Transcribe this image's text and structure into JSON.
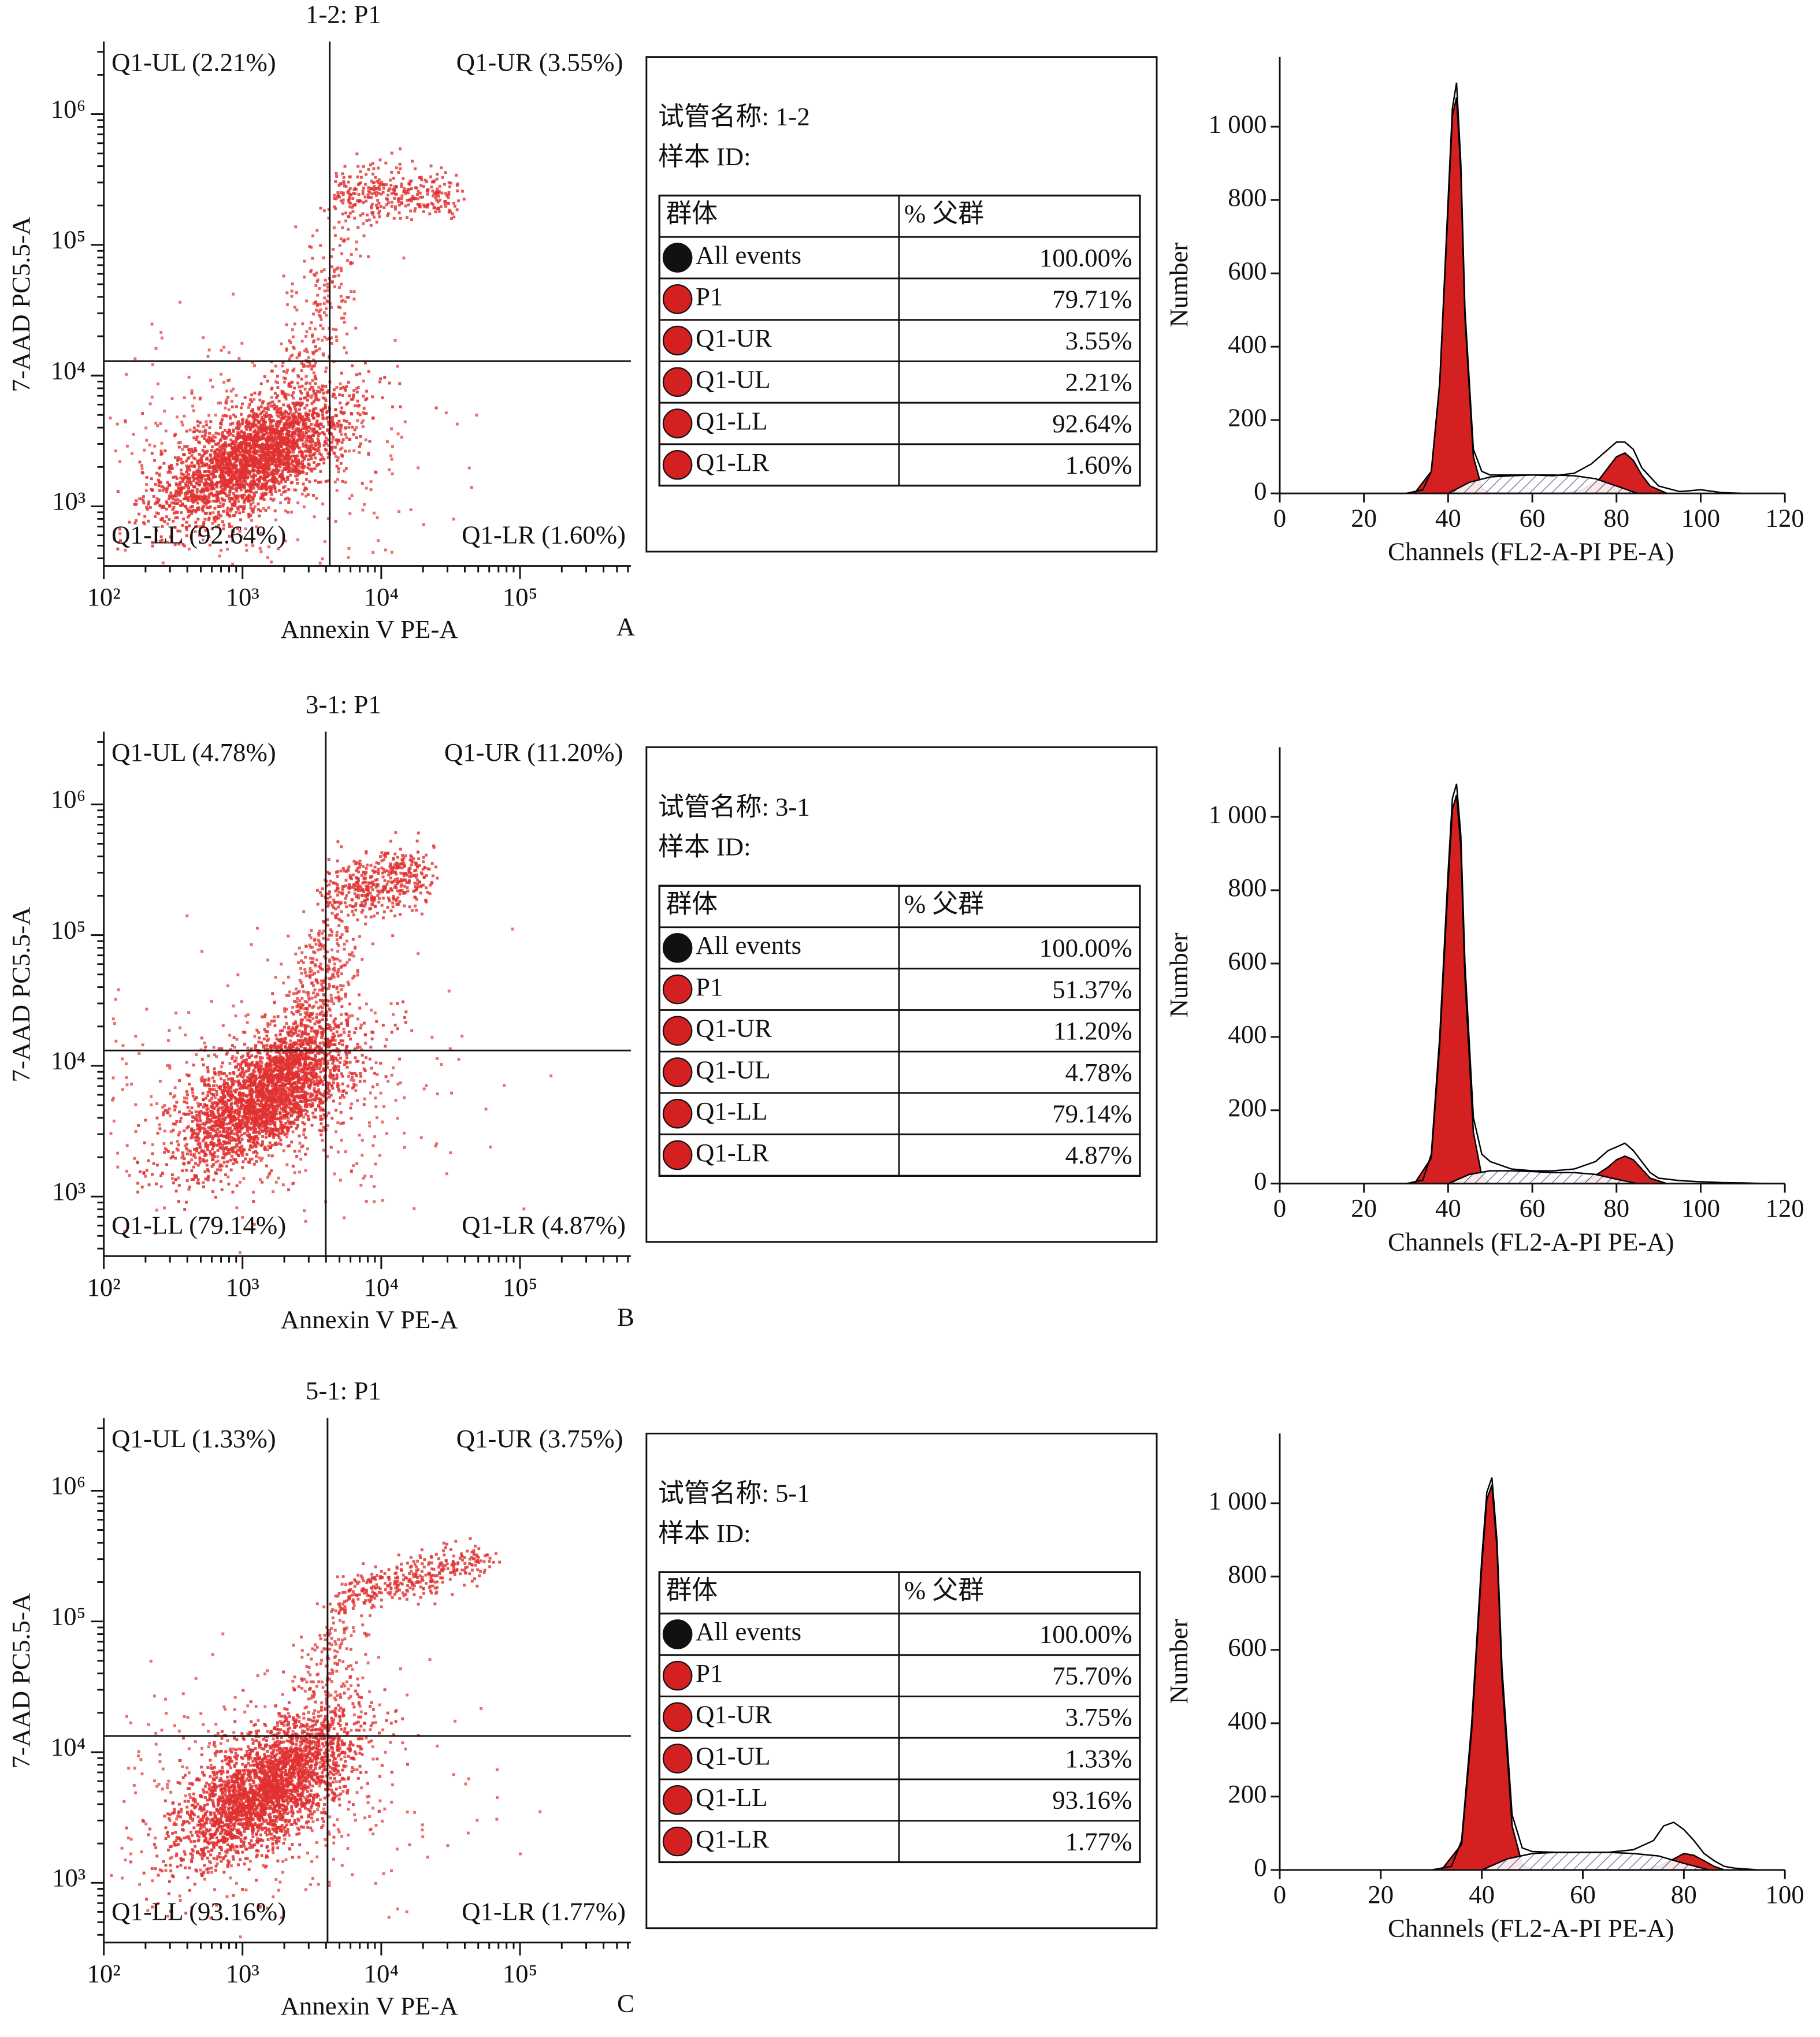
{
  "chart_data": [
    {
      "type": "scatter",
      "title": "1-2: P1",
      "x_label": "Annexin V PE-A",
      "y_label": "7-AAD PC5.5-A",
      "panel_label": "A",
      "xscale": "log",
      "yscale": "log",
      "xlim": [
        100,
        630000
      ],
      "ylim": [
        350,
        3600000
      ],
      "xticks": [
        {
          "value": 100,
          "label": "10²"
        },
        {
          "value": 1000,
          "label": "10³"
        },
        {
          "value": 10000,
          "label": "10⁴"
        },
        {
          "value": 100000,
          "label": "10⁵"
        }
      ],
      "yticks": [
        {
          "value": 1000,
          "label": "10³"
        },
        {
          "value": 10000,
          "label": "10⁴"
        },
        {
          "value": 100000,
          "label": "10⁵"
        },
        {
          "value": 1000000,
          "label": "10⁶"
        }
      ],
      "x_gate": 4250,
      "y_gate": 12900,
      "color": "#e03030",
      "quadrant_labels": {
        "UL": "Q1-UL (2.21%)",
        "UR": "Q1-UR (3.55%)",
        "LL": "Q1-LL (92.64%)",
        "LR": "Q1-LR (1.60%)"
      }
    },
    {
      "type": "table",
      "tube": "试管名称: 1-2",
      "sample": "样本 ID:",
      "columns": [
        "群体",
        "% 父群"
      ],
      "rows": [
        [
          "All events",
          "100.00%"
        ],
        [
          "P1",
          "79.71%"
        ],
        [
          "Q1-UR",
          "3.55%"
        ],
        [
          "Q1-UL",
          "2.21%"
        ],
        [
          "Q1-LL",
          "92.64%"
        ],
        [
          "Q1-LR",
          "1.60%"
        ]
      ],
      "dot_colors": [
        "#111111",
        "#d42020",
        "#d42020",
        "#d42020",
        "#d42020",
        "#d42020"
      ]
    },
    {
      "type": "area",
      "x_label": "Channels (FL2-A-PI PE-A)",
      "y_label": "Number",
      "xlim": [
        0,
        120
      ],
      "ylim": [
        0,
        1190
      ],
      "xticks": [
        0,
        20,
        40,
        60,
        80,
        100,
        120
      ],
      "yticks": [
        0,
        200,
        400,
        600,
        800,
        {
          "value": 1000,
          "label": "1 000"
        }
      ],
      "series": [
        {
          "color": "#000000",
          "fill": "#d42020",
          "x": [
            32,
            36,
            38,
            40,
            41,
            42,
            43,
            44,
            46,
            48,
            50
          ],
          "values": [
            0,
            60,
            300,
            780,
            1030,
            1080,
            880,
            480,
            100,
            15,
            0
          ]
        },
        {
          "color": "#000000",
          "fill": "#d42020",
          "x": [
            68,
            72,
            76,
            78,
            80,
            82,
            84,
            86,
            88,
            92
          ],
          "values": [
            0,
            10,
            40,
            70,
            100,
            110,
            90,
            50,
            20,
            0
          ]
        },
        {
          "color": "#000000",
          "fill": "hatch",
          "x": [
            40,
            45,
            50,
            55,
            60,
            65,
            70,
            75,
            80,
            85
          ],
          "values": [
            0,
            30,
            45,
            48,
            50,
            50,
            48,
            40,
            20,
            0
          ]
        },
        {
          "color": "#000000",
          "fill": "none",
          "x": [
            30,
            34,
            36,
            38,
            40,
            41,
            42,
            43,
            44,
            46,
            48,
            50,
            55,
            60,
            65,
            70,
            74,
            78,
            80,
            82,
            84,
            86,
            90,
            95,
            100,
            105,
            110
          ],
          "values": [
            0,
            10,
            60,
            300,
            800,
            1050,
            1120,
            900,
            500,
            120,
            60,
            50,
            50,
            50,
            48,
            55,
            80,
            120,
            140,
            140,
            120,
            70,
            20,
            5,
            10,
            2,
            0
          ]
        }
      ]
    },
    {
      "type": "scatter",
      "title": "3-1: P1",
      "x_label": "Annexin V PE-A",
      "y_label": "7-AAD PC5.5-A",
      "panel_label": "B",
      "xscale": "log",
      "yscale": "log",
      "xlim": [
        100,
        630000
      ],
      "ylim": [
        350,
        3600000
      ],
      "xticks": [
        {
          "value": 100,
          "label": "10²"
        },
        {
          "value": 1000,
          "label": "10³"
        },
        {
          "value": 10000,
          "label": "10⁴"
        },
        {
          "value": 100000,
          "label": "10⁵"
        }
      ],
      "yticks": [
        {
          "value": 1000,
          "label": "10³"
        },
        {
          "value": 10000,
          "label": "10⁴"
        },
        {
          "value": 100000,
          "label": "10⁵"
        },
        {
          "value": 1000000,
          "label": "10⁶"
        }
      ],
      "x_gate": 3980,
      "y_gate": 13100,
      "color": "#e03030",
      "quadrant_labels": {
        "UL": "Q1-UL (4.78%)",
        "UR": "Q1-UR (11.20%)",
        "LL": "Q1-LL (79.14%)",
        "LR": "Q1-LR (4.87%)"
      }
    },
    {
      "type": "table",
      "tube": "试管名称: 3-1",
      "sample": "样本 ID:",
      "columns": [
        "群体",
        "% 父群"
      ],
      "rows": [
        [
          "All events",
          "100.00%"
        ],
        [
          "P1",
          "51.37%"
        ],
        [
          "Q1-UR",
          "11.20%"
        ],
        [
          "Q1-UL",
          "4.78%"
        ],
        [
          "Q1-LL",
          "79.14%"
        ],
        [
          "Q1-LR",
          "4.87%"
        ]
      ],
      "dot_colors": [
        "#111111",
        "#d42020",
        "#d42020",
        "#d42020",
        "#d42020",
        "#d42020"
      ]
    },
    {
      "type": "area",
      "x_label": "Channels (FL2-A-PI PE-A)",
      "y_label": "Number",
      "xlim": [
        0,
        120
      ],
      "ylim": [
        0,
        1190
      ],
      "xticks": [
        0,
        20,
        40,
        60,
        80,
        100,
        120
      ],
      "yticks": [
        0,
        200,
        400,
        600,
        800,
        {
          "value": 1000,
          "label": "1 000"
        }
      ],
      "series": [
        {
          "color": "#000000",
          "fill": "#d42020",
          "x": [
            32,
            36,
            38,
            40,
            41,
            42,
            43,
            44,
            46,
            48,
            50
          ],
          "values": [
            0,
            70,
            380,
            820,
            1020,
            1060,
            920,
            560,
            140,
            20,
            0
          ]
        },
        {
          "color": "#000000",
          "fill": "#d42020",
          "x": [
            70,
            74,
            78,
            80,
            82,
            84,
            86,
            88,
            92
          ],
          "values": [
            0,
            15,
            45,
            65,
            75,
            65,
            40,
            15,
            0
          ]
        },
        {
          "color": "#000000",
          "fill": "hatch",
          "x": [
            40,
            45,
            50,
            55,
            60,
            65,
            70,
            75,
            80,
            85
          ],
          "values": [
            0,
            25,
            35,
            35,
            33,
            30,
            30,
            25,
            12,
            0
          ]
        },
        {
          "color": "#000000",
          "fill": "none",
          "x": [
            30,
            34,
            36,
            38,
            40,
            41,
            42,
            43,
            44,
            46,
            48,
            50,
            55,
            60,
            65,
            70,
            75,
            78,
            80,
            82,
            84,
            86,
            88,
            90,
            95,
            100,
            105,
            110,
            115
          ],
          "values": [
            0,
            10,
            80,
            400,
            850,
            1050,
            1090,
            950,
            600,
            180,
            80,
            60,
            40,
            35,
            35,
            40,
            60,
            90,
            100,
            110,
            90,
            60,
            30,
            15,
            8,
            5,
            3,
            2,
            0
          ]
        }
      ]
    },
    {
      "type": "scatter",
      "title": "5-1: P1",
      "x_label": "Annexin V PE-A",
      "y_label": "7-AAD PC5.5-A",
      "panel_label": "C",
      "xscale": "log",
      "yscale": "log",
      "xlim": [
        100,
        630000
      ],
      "ylim": [
        350,
        3600000
      ],
      "xticks": [
        {
          "value": 100,
          "label": "10²"
        },
        {
          "value": 1000,
          "label": "10³"
        },
        {
          "value": 10000,
          "label": "10⁴"
        },
        {
          "value": 100000,
          "label": "10⁵"
        }
      ],
      "yticks": [
        {
          "value": 1000,
          "label": "10³"
        },
        {
          "value": 10000,
          "label": "10⁴"
        },
        {
          "value": 100000,
          "label": "10⁵"
        },
        {
          "value": 1000000,
          "label": "10⁶"
        }
      ],
      "x_gate": 4100,
      "y_gate": 13300,
      "color": "#e03030",
      "quadrant_labels": {
        "UL": "Q1-UL (1.33%)",
        "UR": "Q1-UR (3.75%)",
        "LL": "Q1-LL (93.16%)",
        "LR": "Q1-LR (1.77%)"
      }
    },
    {
      "type": "table",
      "tube": "试管名称: 5-1",
      "sample": "样本 ID:",
      "columns": [
        "群体",
        "% 父群"
      ],
      "rows": [
        [
          "All events",
          "100.00%"
        ],
        [
          "P1",
          "75.70%"
        ],
        [
          "Q1-UR",
          "3.75%"
        ],
        [
          "Q1-UL",
          "1.33%"
        ],
        [
          "Q1-LL",
          "93.16%"
        ],
        [
          "Q1-LR",
          "1.77%"
        ]
      ],
      "dot_colors": [
        "#111111",
        "#d42020",
        "#d42020",
        "#d42020",
        "#d42020",
        "#d42020"
      ]
    },
    {
      "type": "area",
      "x_label": "Channels (FL2-A-PI PE-A)",
      "y_label": "Number",
      "xlim": [
        0,
        100
      ],
      "ylim": [
        0,
        1190
      ],
      "xticks": [
        0,
        20,
        40,
        60,
        80,
        100
      ],
      "yticks": [
        0,
        200,
        400,
        600,
        800,
        {
          "value": 1000,
          "label": "1 000"
        }
      ],
      "series": [
        {
          "color": "#000000",
          "fill": "#d42020",
          "x": [
            32,
            36,
            38,
            40,
            41,
            42,
            43,
            44,
            46,
            48,
            50
          ],
          "values": [
            0,
            70,
            380,
            830,
            1010,
            1050,
            880,
            520,
            120,
            15,
            0
          ]
        },
        {
          "color": "#000000",
          "fill": "#d42020",
          "x": [
            72,
            75,
            78,
            80,
            82,
            84,
            86,
            88
          ],
          "values": [
            0,
            10,
            30,
            45,
            40,
            25,
            10,
            0
          ]
        },
        {
          "color": "#000000",
          "fill": "hatch",
          "x": [
            40,
            45,
            50,
            55,
            60,
            65,
            70,
            75,
            80,
            85
          ],
          "values": [
            0,
            30,
            45,
            48,
            48,
            48,
            45,
            38,
            18,
            0
          ]
        },
        {
          "color": "#000000",
          "fill": "none",
          "x": [
            30,
            34,
            36,
            38,
            40,
            41,
            42,
            43,
            44,
            46,
            48,
            50,
            55,
            60,
            65,
            70,
            74,
            76,
            78,
            80,
            82,
            84,
            86,
            88,
            90,
            95
          ],
          "values": [
            0,
            10,
            80,
            400,
            850,
            1030,
            1070,
            900,
            550,
            150,
            60,
            50,
            48,
            48,
            48,
            55,
            80,
            120,
            130,
            110,
            80,
            45,
            25,
            10,
            5,
            0
          ]
        }
      ]
    }
  ]
}
